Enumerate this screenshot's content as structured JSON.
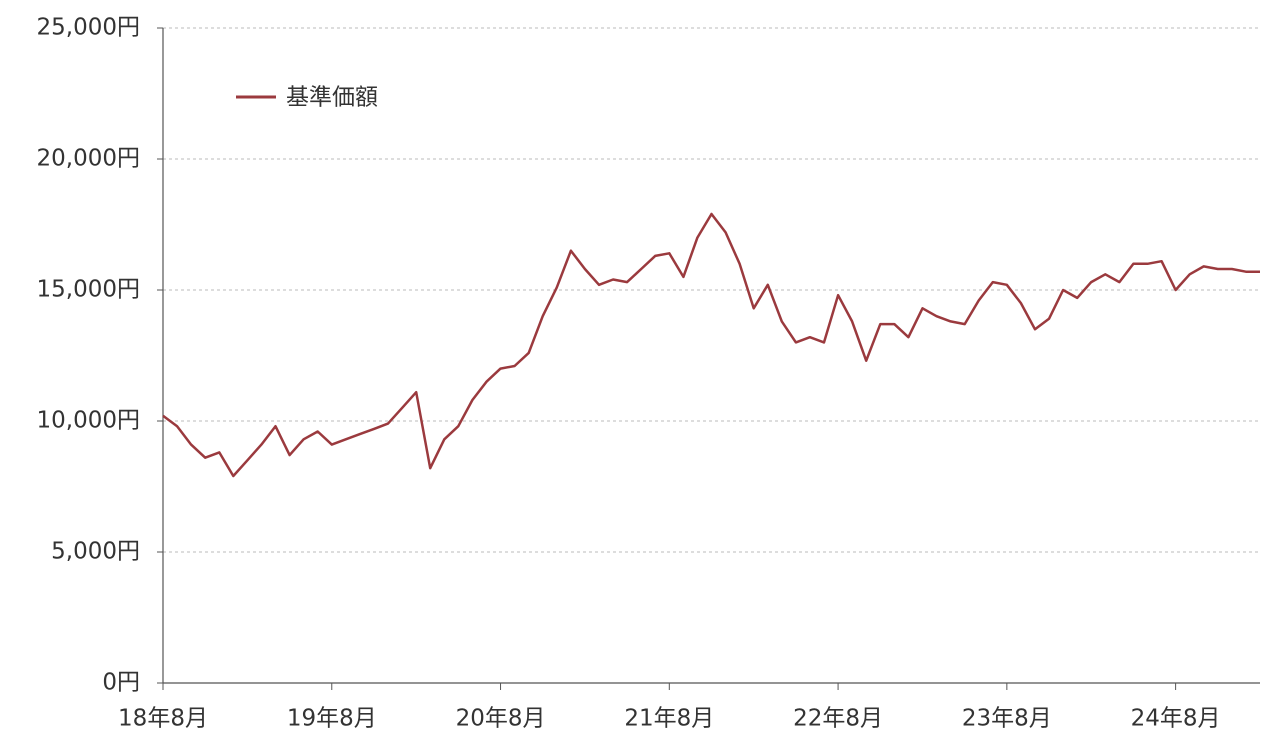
{
  "chart_data": {
    "type": "line",
    "categories": [
      "18年8月",
      null,
      null,
      null,
      null,
      null,
      null,
      null,
      null,
      null,
      null,
      null,
      "19年8月",
      null,
      null,
      null,
      null,
      null,
      null,
      null,
      null,
      null,
      null,
      null,
      "20年8月",
      null,
      null,
      null,
      null,
      null,
      null,
      null,
      null,
      null,
      null,
      null,
      "21年8月",
      null,
      null,
      null,
      null,
      null,
      null,
      null,
      null,
      null,
      null,
      null,
      "22年8月",
      null,
      null,
      null,
      null,
      null,
      null,
      null,
      null,
      null,
      null,
      null,
      "23年8月",
      null,
      null,
      null,
      null,
      null,
      null,
      null,
      null,
      null,
      null,
      null,
      "24年8月",
      null,
      null,
      null,
      null,
      null,
      null
    ],
    "series": [
      {
        "name": "基準価額",
        "color": "#9b3a3e",
        "values": [
          10200,
          9800,
          9100,
          8600,
          8800,
          7900,
          8500,
          9100,
          9800,
          8700,
          9300,
          9600,
          9100,
          9300,
          9500,
          9700,
          9900,
          10500,
          11100,
          8200,
          9300,
          9800,
          10800,
          11500,
          12000,
          12100,
          12600,
          14000,
          15100,
          16500,
          15800,
          15200,
          15400,
          15300,
          15800,
          16300,
          16400,
          15500,
          17000,
          17900,
          17200,
          16000,
          14300,
          15200,
          13800,
          13000,
          13200,
          13000,
          14800,
          13800,
          12300,
          13700,
          13700,
          13200,
          14300,
          14000,
          13800,
          13700,
          14600,
          15300,
          15200,
          14500,
          13500,
          13900,
          15000,
          14700,
          15300,
          15600,
          15300,
          16000,
          16000,
          16100,
          15000,
          15600,
          15900,
          15800,
          15800,
          15700,
          15700
        ]
      }
    ],
    "ylim": [
      0,
      25000
    ],
    "yticks": [
      {
        "value": 0,
        "label": "0円"
      },
      {
        "value": 5000,
        "label": "5,000円"
      },
      {
        "value": 10000,
        "label": "10,000円"
      },
      {
        "value": 15000,
        "label": "15,000円"
      },
      {
        "value": 20000,
        "label": "20,000円"
      },
      {
        "value": 25000,
        "label": "25,000円"
      }
    ],
    "grid": true,
    "legend": "upper-left"
  }
}
